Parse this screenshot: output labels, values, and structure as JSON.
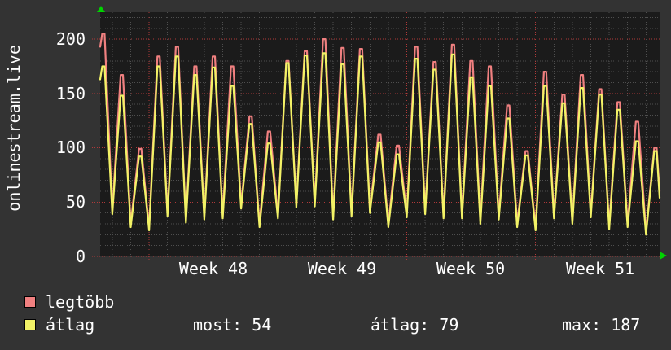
{
  "title": {
    "vertical_label": "onlinestream.live"
  },
  "chart_data": {
    "type": "line",
    "title": "onlinestream.live",
    "x_axis": {
      "tick_labels": [
        "Week 48",
        "Week 49",
        "Week 50",
        "Week 51"
      ],
      "label_center_days": [
        6.16,
        13.16,
        20.16,
        27.16
      ],
      "week_boundary_days": [
        2.66,
        9.66,
        16.66,
        23.66
      ],
      "days_span": 30.4,
      "minor_grid_start_day": 0.66,
      "minor_grid_step_days": 1
    },
    "y_axis": {
      "tick_labels": [
        "0",
        "50",
        "100",
        "150",
        "200"
      ],
      "tick_values": [
        0,
        50,
        100,
        150,
        200
      ],
      "minor_step": 10,
      "major_step": 50,
      "ymin": 0,
      "ymax": 224.8,
      "grid": true
    },
    "peak_day_offset": 0.16,
    "trough_day_offset": 0.66,
    "series": [
      {
        "name": "legtöbb",
        "role": "daily-maximum",
        "color": "#f08080",
        "start_value": 193,
        "daily_peaks": [
          205,
          167,
          99,
          184,
          193,
          175,
          184,
          175,
          129,
          115,
          180,
          189,
          200,
          192,
          191,
          112,
          102,
          193,
          179,
          195,
          180,
          175,
          139,
          97,
          170,
          149,
          167,
          154,
          142,
          124,
          100
        ],
        "daily_troughs": [
          42,
          30,
          27,
          40,
          34,
          37,
          38,
          47,
          30,
          38,
          48,
          49,
          37,
          40,
          43,
          30,
          39,
          42,
          38,
          38,
          33,
          37,
          30,
          27,
          38,
          33,
          39,
          28,
          30,
          23
        ],
        "end_value": 60
      },
      {
        "name": "átlag",
        "role": "daily-average",
        "color": "#f2f266",
        "start_value": 163,
        "daily_peaks": [
          175,
          148,
          92,
          175,
          184,
          167,
          174,
          157,
          122,
          104,
          178,
          185,
          187,
          177,
          184,
          105,
          94,
          182,
          172,
          186,
          165,
          157,
          127,
          93,
          157,
          141,
          155,
          149,
          135,
          106,
          97
        ],
        "daily_troughs": [
          39,
          27,
          24,
          37,
          31,
          34,
          35,
          44,
          27,
          35,
          45,
          46,
          34,
          37,
          40,
          27,
          36,
          39,
          35,
          35,
          30,
          34,
          27,
          24,
          35,
          30,
          36,
          25,
          27,
          20
        ],
        "end_value": 54
      }
    ],
    "legend_position": "bottom-left",
    "colors": {
      "outer_background": "#333333",
      "plot_background": "#1b1b1b",
      "minor_grid": "#4f4f4f",
      "major_grid": "#b03a3a",
      "axis_arrow": "#00d400",
      "text": "#ffffff"
    }
  },
  "stats": [
    {
      "label": "most",
      "value": "54",
      "text": "most: 54"
    },
    {
      "label": "átlag",
      "value": "79",
      "text": "átlag: 79"
    },
    {
      "label": "max",
      "value": "187",
      "text": "max: 187"
    }
  ]
}
